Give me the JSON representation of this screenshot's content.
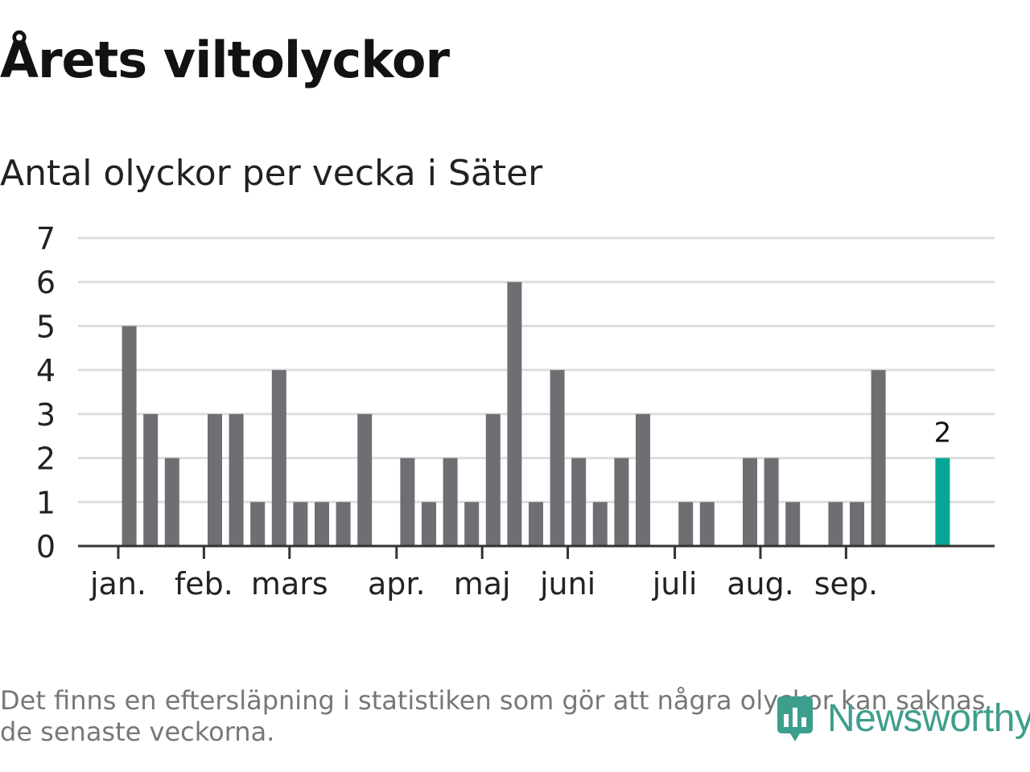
{
  "title": "Årets viltolyckor",
  "subtitle": "Antal olyckor per vecka i Säter",
  "note": "Det finns en eftersläpning i statistiken som gör att några olyckor kan saknas de senaste veckorna.",
  "brand": "Newsworthy",
  "colors": {
    "bar": "#6f6e73",
    "highlight": "#05a697",
    "grid": "#dddddd",
    "axis": "#333333",
    "text": "#222222"
  },
  "chart_data": {
    "type": "bar",
    "title": "Antal olyckor per vecka i Säter",
    "xlabel": "",
    "ylabel": "",
    "ylim": [
      0,
      7
    ],
    "yticks": [
      0,
      1,
      2,
      3,
      4,
      5,
      6,
      7
    ],
    "month_ticks": [
      {
        "label": "jan.",
        "week": 1
      },
      {
        "label": "feb.",
        "week": 5
      },
      {
        "label": "mars",
        "week": 9
      },
      {
        "label": "apr.",
        "week": 14
      },
      {
        "label": "maj",
        "week": 18
      },
      {
        "label": "juni",
        "week": 22
      },
      {
        "label": "juli",
        "week": 27
      },
      {
        "label": "aug.",
        "week": 31
      },
      {
        "label": "sep.",
        "week": 35
      }
    ],
    "weeks": [
      1,
      2,
      3,
      4,
      5,
      6,
      7,
      8,
      9,
      10,
      11,
      12,
      13,
      14,
      15,
      16,
      17,
      18,
      19,
      20,
      21,
      22,
      23,
      24,
      25,
      26,
      27,
      28,
      29,
      30,
      31,
      32,
      33,
      34,
      35,
      36,
      37,
      38,
      39,
      40
    ],
    "values": [
      0,
      5,
      3,
      2,
      0,
      3,
      3,
      1,
      4,
      1,
      1,
      1,
      3,
      0,
      2,
      1,
      2,
      1,
      3,
      6,
      1,
      4,
      2,
      1,
      2,
      3,
      0,
      1,
      1,
      0,
      2,
      2,
      1,
      0,
      1,
      1,
      4,
      0,
      0,
      2
    ],
    "highlight_index": 39,
    "highlight_label": "2"
  }
}
